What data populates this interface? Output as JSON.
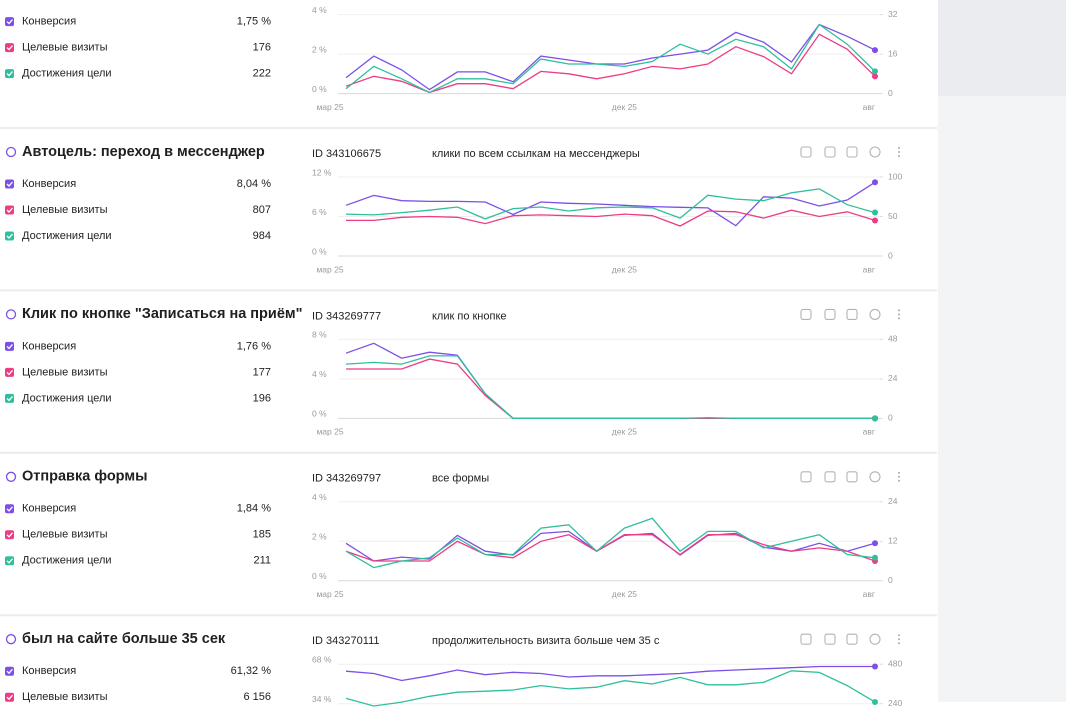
{
  "sections": [
    {
      "metrics": [
        {
          "label": "Конверсия",
          "value": "1,75 %",
          "color": "#7c4fe6"
        },
        {
          "label": "Целевые визиты",
          "value": "176",
          "color": "#ec3c84"
        },
        {
          "label": "Достижения цели",
          "value": "222",
          "color": "#2fbf9c"
        }
      ],
      "chart": {
        "categories": [
          "мар 25",
          null,
          null,
          null,
          null,
          null,
          null,
          null,
          null,
          null,
          "дек 25",
          null,
          null,
          null,
          null,
          null,
          null,
          null,
          null,
          "авг"
        ],
        "ylim": [
          0,
          4
        ],
        "yticks": [
          {
            "value": 0,
            "label": "0 %"
          },
          {
            "value": 2,
            "label": "2 %"
          },
          {
            "value": 4,
            "label": "4 %"
          }
        ],
        "y2lim": [
          0,
          32
        ],
        "y2ticks": [
          0,
          16,
          32
        ],
        "series": [
          {
            "color": "#7c4fe6",
            "values": [
              0.8,
              1.9,
              1.2,
              0.2,
              1.1,
              1.1,
              0.6,
              1.9,
              1.7,
              1.5,
              1.5,
              1.8,
              2.0,
              2.2,
              3.1,
              2.6,
              1.6,
              3.5,
              2.9,
              2.2
            ]
          },
          {
            "color": "#ec3c84",
            "axis": "y2",
            "values": [
              3,
              7,
              5,
              0.5,
              4,
              4,
              2,
              9,
              8,
              6,
              8,
              11,
              10,
              12,
              19,
              15,
              8,
              24,
              18,
              7
            ]
          },
          {
            "color": "#2fbf9c",
            "axis": "y2",
            "values": [
              2,
              11,
              6,
              0.5,
              6,
              6,
              4,
              14,
              12,
              12,
              11,
              13,
              20,
              16,
              22,
              19,
              10,
              28,
              20,
              9
            ]
          }
        ]
      }
    },
    {
      "title": "Автоцель: переход в мессенджер",
      "id": "ID 343106675",
      "description": "клики по всем ссылкам на мессенджеры",
      "metrics": [
        {
          "label": "Конверсия",
          "value": "8,04 %",
          "color": "#7c4fe6"
        },
        {
          "label": "Целевые визиты",
          "value": "807",
          "color": "#ec3c84"
        },
        {
          "label": "Достижения цели",
          "value": "984",
          "color": "#2fbf9c"
        }
      ],
      "chart": {
        "categories": [
          "мар 25",
          null,
          null,
          null,
          null,
          null,
          null,
          null,
          null,
          null,
          "дек 25",
          null,
          null,
          null,
          null,
          null,
          null,
          null,
          null,
          "авг"
        ],
        "ylim": [
          0,
          12
        ],
        "yticks": [
          {
            "value": 0,
            "label": "0 %"
          },
          {
            "value": 6,
            "label": "6 %"
          },
          {
            "value": 12,
            "label": "12 %"
          }
        ],
        "y2lim": [
          0,
          100
        ],
        "y2ticks": [
          0,
          50,
          100
        ],
        "series": [
          {
            "color": "#7c4fe6",
            "values": [
              7.7,
              9.2,
              8.4,
              8.3,
              8.3,
              8.2,
              6.3,
              8.2,
              8.0,
              7.9,
              7.7,
              7.5,
              7.4,
              7.3,
              4.6,
              9.0,
              8.8,
              7.6,
              8.5,
              11.2
            ]
          },
          {
            "color": "#ec3c84",
            "axis": "y2",
            "values": [
              45,
              45,
              49,
              50,
              49,
              41,
              51,
              52,
              51,
              50,
              53,
              51,
              38,
              57,
              56,
              48,
              58,
              50,
              56,
              45
            ]
          },
          {
            "color": "#2fbf9c",
            "axis": "y2",
            "values": [
              53,
              52,
              55,
              58,
              62,
              47,
              60,
              62,
              57,
              61,
              62,
              61,
              48,
              77,
              72,
              70,
              80,
              85,
              65,
              55
            ]
          }
        ]
      }
    },
    {
      "title": "Клик по кнопке \"Записаться на приём\"",
      "id": "ID 343269777",
      "description": "клик по кнопке",
      "metrics": [
        {
          "label": "Конверсия",
          "value": "1,76 %",
          "color": "#7c4fe6"
        },
        {
          "label": "Целевые визиты",
          "value": "177",
          "color": "#ec3c84"
        },
        {
          "label": "Достижения цели",
          "value": "196",
          "color": "#2fbf9c"
        }
      ],
      "chart": {
        "categories": [
          "мар 25",
          null,
          null,
          null,
          null,
          null,
          null,
          null,
          null,
          null,
          "дек 25",
          null,
          null,
          null,
          null,
          null,
          null,
          null,
          null,
          "авг"
        ],
        "ylim": [
          0,
          8
        ],
        "yticks": [
          {
            "value": 0,
            "label": "0 %"
          },
          {
            "value": 4,
            "label": "4 %"
          },
          {
            "value": 8,
            "label": "8 %"
          }
        ],
        "y2lim": [
          0,
          48
        ],
        "y2ticks": [
          0,
          24,
          48
        ],
        "series": [
          {
            "color": "#7c4fe6",
            "values": [
              6.6,
              7.6,
              6.1,
              6.7,
              6.4,
              2.5,
              0,
              0,
              0,
              0,
              0,
              0,
              0,
              0,
              0,
              0,
              0,
              0,
              0,
              0
            ]
          },
          {
            "color": "#ec3c84",
            "axis": "y2",
            "values": [
              30,
              30,
              30,
              36,
              33,
              14,
              0,
              0,
              0,
              0,
              0,
              0,
              0,
              0,
              0,
              0,
              0,
              0,
              0,
              0
            ]
          },
          {
            "color": "#2fbf9c",
            "axis": "y2",
            "values": [
              33,
              34,
              33,
              38,
              38,
              15,
              0,
              0,
              0,
              0,
              0,
              0,
              0,
              0.5,
              0,
              0,
              0,
              0,
              0,
              0
            ]
          }
        ]
      }
    },
    {
      "title": "Отправка формы",
      "id": "ID 343269797",
      "description": "все формы",
      "metrics": [
        {
          "label": "Конверсия",
          "value": "1,84 %",
          "color": "#7c4fe6"
        },
        {
          "label": "Целевые визиты",
          "value": "185",
          "color": "#ec3c84"
        },
        {
          "label": "Достижения цели",
          "value": "211",
          "color": "#2fbf9c"
        }
      ],
      "chart": {
        "categories": [
          "мар 25",
          null,
          null,
          null,
          null,
          null,
          null,
          null,
          null,
          null,
          "дек 25",
          null,
          null,
          null,
          null,
          null,
          null,
          null,
          null,
          "авг"
        ],
        "ylim": [
          0,
          4
        ],
        "yticks": [
          {
            "value": 0,
            "label": "0 %"
          },
          {
            "value": 2,
            "label": "2 %"
          },
          {
            "value": 4,
            "label": "4 %"
          }
        ],
        "y2lim": [
          0,
          24
        ],
        "y2ticks": [
          0,
          12,
          24
        ],
        "series": [
          {
            "color": "#7c4fe6",
            "values": [
              1.9,
              1.0,
              1.2,
              1.1,
              2.3,
              1.5,
              1.3,
              2.4,
              2.5,
              1.5,
              2.3,
              2.4,
              1.3,
              2.3,
              2.4,
              1.7,
              1.5,
              1.9,
              1.5,
              1.9
            ]
          },
          {
            "color": "#ec3c84",
            "axis": "y2",
            "values": [
              9,
              6,
              6,
              6,
              12,
              8,
              7,
              12,
              14,
              9,
              14,
              14,
              8,
              14,
              14,
              11,
              9,
              10,
              9,
              6
            ]
          },
          {
            "color": "#2fbf9c",
            "axis": "y2",
            "values": [
              9,
              4,
              6,
              7,
              13,
              8,
              8,
              16,
              17,
              9,
              16,
              19,
              9,
              15,
              15,
              10,
              12,
              14,
              8,
              7
            ]
          }
        ]
      }
    },
    {
      "title": "был на сайте больше 35 сек",
      "id": "ID 343270111",
      "description": "продолжительность визита больше чем 35 с",
      "metrics": [
        {
          "label": "Конверсия",
          "value": "61,32 %",
          "color": "#7c4fe6"
        },
        {
          "label": "Целевые визиты",
          "value": "6 156",
          "color": "#ec3c84"
        }
      ],
      "chart": {
        "ylim": [
          0,
          68
        ],
        "yticks": [
          {
            "value": 34,
            "label": "34 %"
          },
          {
            "value": 68,
            "label": "68 %"
          }
        ],
        "y2lim": [
          0,
          480
        ],
        "y2ticks": [
          240,
          480
        ],
        "series": [
          {
            "color": "#7c4fe6",
            "values": [
              62,
              60,
              54,
              58,
              63,
              59,
              61,
              60,
              57,
              58,
              58,
              59,
              60,
              62,
              63,
              64,
              65,
              66,
              66,
              66
            ]
          },
          {
            "color": "#2fbf9c",
            "axis": "y2",
            "values": [
              272,
              226,
              250,
              285,
              310,
              316,
              323,
              350,
              330,
              340,
              380,
              360,
              400,
              355,
              355,
              370,
              440,
              430,
              350,
              250
            ]
          }
        ]
      }
    }
  ]
}
